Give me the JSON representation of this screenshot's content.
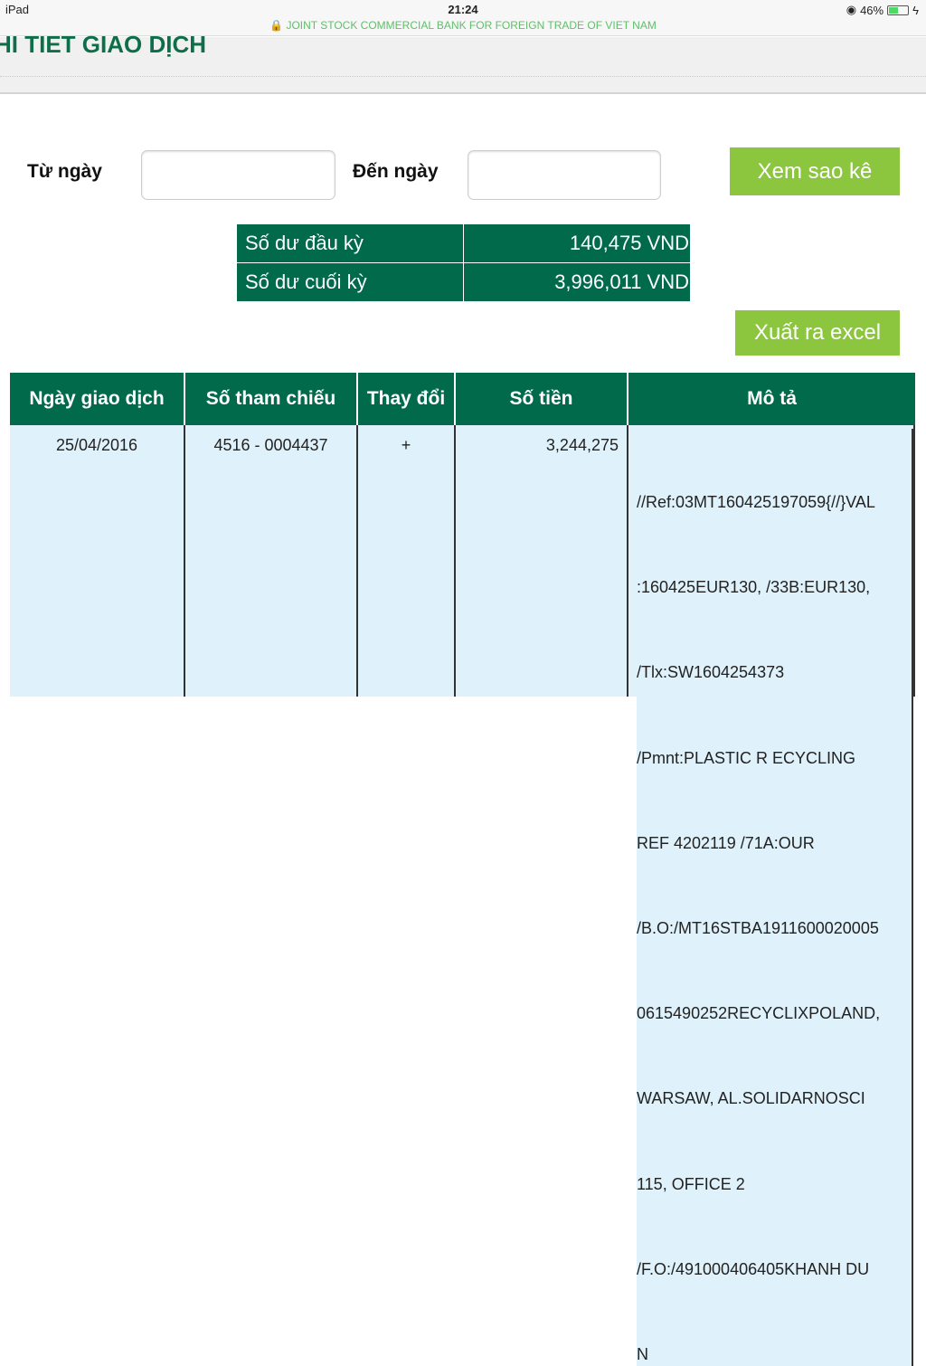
{
  "status_bar": {
    "device": "iPad",
    "time": "21:24",
    "battery": "46%",
    "url_title": "JOINT STOCK COMMERCIAL BANK FOR FOREIGN TRADE OF VIET NAM",
    "battery_level": 0.46
  },
  "header": {
    "title": "HI TIET GIAO DỊCH"
  },
  "filter": {
    "from_label": "Từ ngày",
    "from_value": "",
    "to_label": "Đến ngày",
    "to_value": "",
    "view_button": "Xem sao kê"
  },
  "balances": [
    {
      "label": "Số dư đầu kỳ",
      "value": "140,475 VND"
    },
    {
      "label": "Số dư cuối kỳ",
      "value": "3,996,011 VND"
    }
  ],
  "export_button": "Xuất ra excel",
  "table": {
    "columns": [
      "Ngày giao dịch",
      "Số tham chiếu",
      "Thay đổi",
      "Số tiền",
      "Mô tả"
    ],
    "rows": [
      {
        "date": "25/04/2016",
        "ref": "4516 - 0004437",
        "change": "+",
        "amount": "3,244,275",
        "description": [
          "//Ref:03MT160425197059{//}VAL",
          ":160425EUR130, /33B:EUR130,",
          "/Tlx:SW1604254373",
          "/Pmnt:PLASTIC R ECYCLING",
          "REF 4202119 /71A:OUR",
          "/B.O:/MT16STBA1911600020005",
          "0615490252RECYCLIXPOLAND,",
          "WARSAW, AL.SOLIDARNOSCI",
          "115, OFFICE 2",
          "/F.O:/491000406405KHANH DU",
          "N"
        ]
      }
    ]
  },
  "colors": {
    "brand_green": "#006a4b",
    "button_green": "#8cc63e",
    "row_bg": "#dff1fa"
  }
}
